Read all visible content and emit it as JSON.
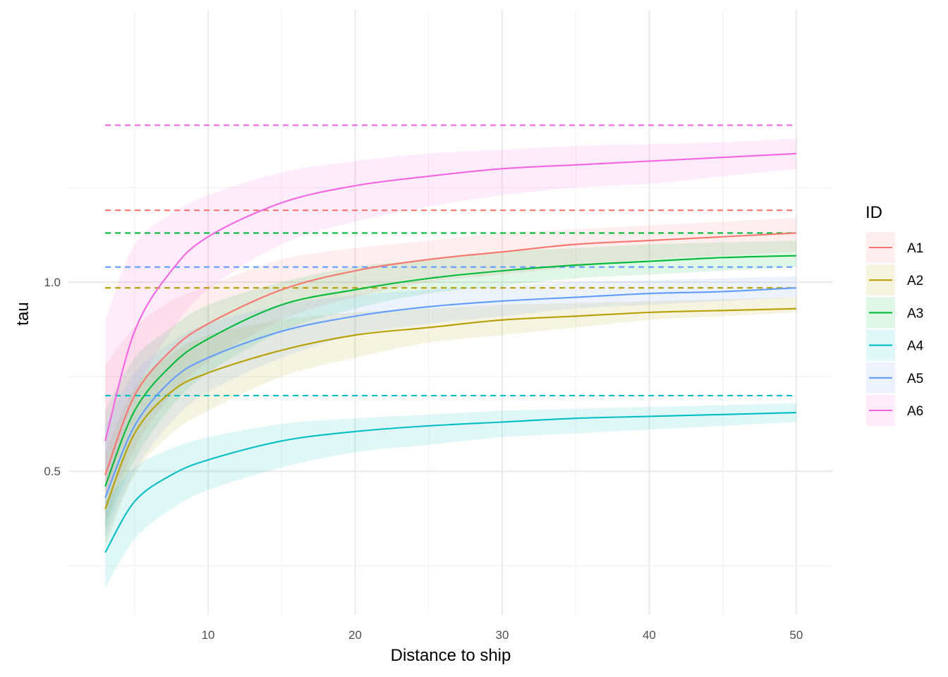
{
  "chart_data": {
    "type": "line",
    "title": "",
    "xlabel": "Distance to ship",
    "ylabel": "tau",
    "xlim": [
      0.5,
      52.5
    ],
    "ylim": [
      0.12,
      1.72
    ],
    "x_ticks": [
      10,
      20,
      30,
      40,
      50
    ],
    "x_tick_labels": [
      "10",
      "20",
      "30",
      "40",
      "50"
    ],
    "y_ticks": [
      0.5,
      1.0
    ],
    "y_tick_labels": [
      "0.5",
      "1.0"
    ],
    "grid": true,
    "legend": {
      "title": "ID",
      "position": "right"
    },
    "series": [
      {
        "name": "A1",
        "color": "#F8766D",
        "x": [
          3,
          5,
          7.5,
          10,
          15,
          20,
          25,
          30,
          35,
          40,
          45,
          50
        ],
        "y": [
          0.49,
          0.7,
          0.82,
          0.89,
          0.98,
          1.03,
          1.06,
          1.08,
          1.1,
          1.11,
          1.12,
          1.13
        ],
        "lower": [
          0.36,
          0.56,
          0.7,
          0.79,
          0.9,
          0.96,
          1.0,
          1.02,
          1.04,
          1.06,
          1.07,
          1.08
        ],
        "upper": [
          0.78,
          0.88,
          0.95,
          0.99,
          1.06,
          1.09,
          1.11,
          1.13,
          1.14,
          1.15,
          1.16,
          1.17
        ],
        "reference": 1.19
      },
      {
        "name": "A2",
        "color": "#B79F00",
        "x": [
          3,
          5,
          7.5,
          10,
          15,
          20,
          25,
          30,
          35,
          40,
          45,
          50
        ],
        "y": [
          0.4,
          0.6,
          0.71,
          0.76,
          0.82,
          0.86,
          0.88,
          0.9,
          0.91,
          0.92,
          0.925,
          0.93
        ],
        "lower": [
          0.3,
          0.49,
          0.6,
          0.66,
          0.75,
          0.8,
          0.84,
          0.86,
          0.88,
          0.9,
          0.91,
          0.92
        ],
        "upper": [
          0.55,
          0.72,
          0.81,
          0.86,
          0.9,
          0.92,
          0.93,
          0.94,
          0.945,
          0.95,
          0.955,
          0.96
        ]
      },
      {
        "name": "A3",
        "color": "#00BA38",
        "x": [
          3,
          5,
          7.5,
          10,
          15,
          20,
          25,
          30,
          35,
          40,
          45,
          50
        ],
        "y": [
          0.46,
          0.66,
          0.78,
          0.85,
          0.94,
          0.98,
          1.01,
          1.03,
          1.045,
          1.055,
          1.065,
          1.07
        ],
        "lower": [
          0.34,
          0.53,
          0.67,
          0.76,
          0.87,
          0.93,
          0.97,
          0.99,
          1.01,
          1.02,
          1.03,
          1.04
        ],
        "upper": [
          0.66,
          0.8,
          0.88,
          0.94,
          1.0,
          1.04,
          1.06,
          1.08,
          1.09,
          1.1,
          1.105,
          1.11
        ],
        "reference": 1.13
      },
      {
        "name": "A4",
        "color": "#00BFC4",
        "x": [
          3,
          5,
          7.5,
          10,
          15,
          20,
          25,
          30,
          35,
          40,
          45,
          50
        ],
        "y": [
          0.285,
          0.42,
          0.49,
          0.53,
          0.58,
          0.605,
          0.62,
          0.63,
          0.64,
          0.645,
          0.65,
          0.655
        ],
        "lower": [
          0.19,
          0.32,
          0.4,
          0.45,
          0.51,
          0.55,
          0.57,
          0.59,
          0.6,
          0.61,
          0.62,
          0.63
        ],
        "upper": [
          0.42,
          0.51,
          0.56,
          0.59,
          0.625,
          0.64,
          0.65,
          0.66,
          0.665,
          0.67,
          0.675,
          0.68
        ],
        "reference": 0.7
      },
      {
        "name": "A5",
        "color": "#619CFF",
        "x": [
          3,
          5,
          7.5,
          10,
          15,
          20,
          25,
          30,
          35,
          40,
          45,
          50
        ],
        "y": [
          0.43,
          0.62,
          0.74,
          0.8,
          0.87,
          0.91,
          0.935,
          0.95,
          0.96,
          0.97,
          0.975,
          0.985
        ],
        "lower": [
          0.32,
          0.5,
          0.63,
          0.71,
          0.8,
          0.86,
          0.89,
          0.91,
          0.93,
          0.94,
          0.95,
          0.96
        ],
        "upper": [
          0.62,
          0.76,
          0.84,
          0.89,
          0.94,
          0.965,
          0.98,
          0.99,
          1.0,
          1.005,
          1.01,
          1.015
        ],
        "reference": 1.04
      },
      {
        "name": "A6",
        "color": "#F564E3",
        "x": [
          3,
          5,
          7.5,
          10,
          15,
          20,
          25,
          30,
          35,
          40,
          45,
          50
        ],
        "y": [
          0.58,
          0.87,
          1.03,
          1.12,
          1.21,
          1.255,
          1.28,
          1.3,
          1.31,
          1.32,
          1.33,
          1.34
        ],
        "lower": [
          0.42,
          0.7,
          0.87,
          0.98,
          1.1,
          1.16,
          1.2,
          1.23,
          1.25,
          1.26,
          1.28,
          1.3
        ],
        "upper": [
          0.9,
          1.1,
          1.18,
          1.23,
          1.29,
          1.32,
          1.34,
          1.35,
          1.36,
          1.365,
          1.37,
          1.38
        ],
        "reference": 1.415
      }
    ],
    "extra_reference_lines": [
      {
        "color": "#B79F00",
        "y": 0.985
      }
    ]
  }
}
